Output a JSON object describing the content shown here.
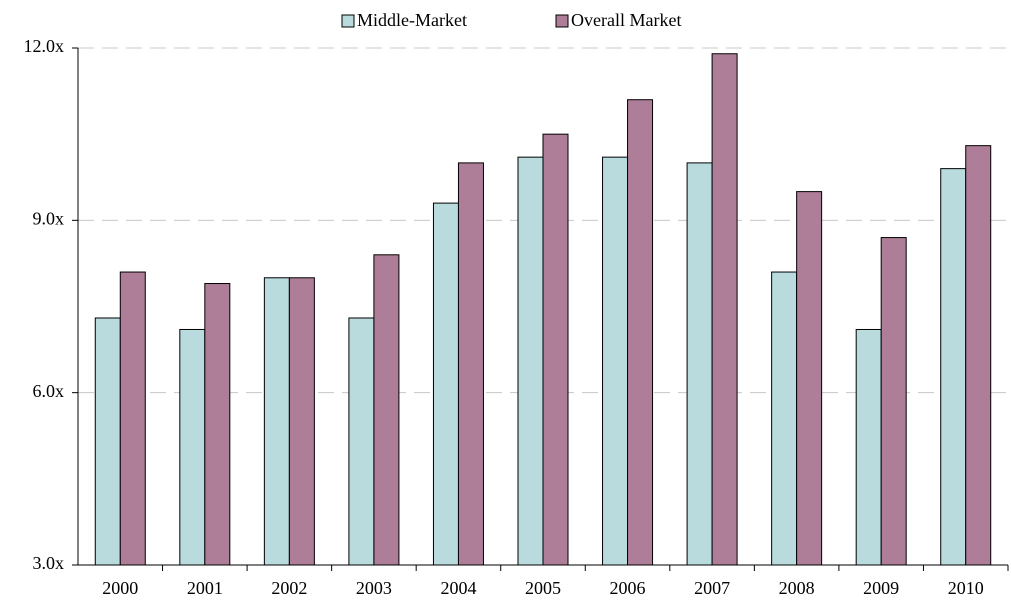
{
  "chart_data": {
    "type": "grouped_bar",
    "categories": [
      "2000",
      "2001",
      "2002",
      "2003",
      "2004",
      "2005",
      "2006",
      "2007",
      "2008",
      "2009",
      "2010"
    ],
    "series": [
      {
        "name": "Middle-Market",
        "color": "#b9dbde",
        "values": [
          7.3,
          7.1,
          8.0,
          7.3,
          9.3,
          10.1,
          10.1,
          10.0,
          8.1,
          7.1,
          9.9
        ]
      },
      {
        "name": "Overall Market",
        "color": "#ae7d97",
        "values": [
          8.1,
          7.9,
          8.0,
          8.4,
          10.0,
          10.5,
          11.1,
          11.9,
          9.5,
          8.7,
          10.3
        ]
      }
    ],
    "ylim": [
      3,
      12
    ],
    "yticks": [
      {
        "value": 3,
        "label": "3.0x"
      },
      {
        "value": 6,
        "label": "6.0x"
      },
      {
        "value": 9,
        "label": "9.0x"
      },
      {
        "value": 12,
        "label": "12.0x"
      }
    ],
    "grid": true
  }
}
